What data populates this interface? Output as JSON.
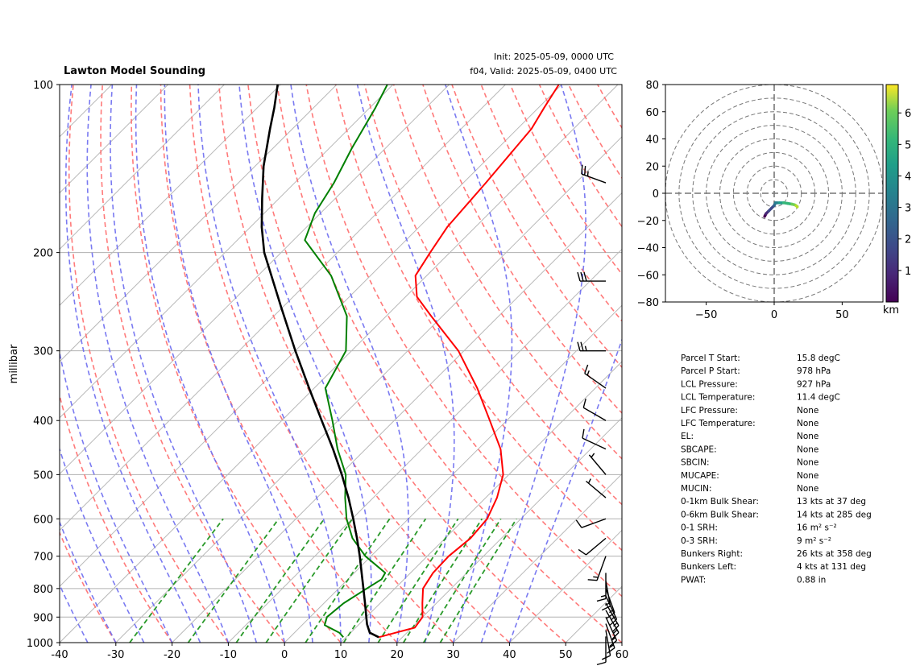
{
  "chart_data": [
    {
      "type": "line",
      "title": "Lawton Model Sounding",
      "init_label": "Init: 2025-05-09, 0000 UTC",
      "valid_label": "f04, Valid: 2025-05-09, 0400 UTC",
      "ylabel": "millibar",
      "xlabel": "",
      "xlim": [
        -40,
        60
      ],
      "ylim": [
        1000,
        100
      ],
      "y_scale": "log",
      "x_ticks": [
        "-40",
        "-30",
        "-20",
        "-10",
        "0",
        "10",
        "20",
        "30",
        "40",
        "50",
        "60"
      ],
      "y_ticks": [
        "1000",
        "900",
        "800",
        "700",
        "600",
        "500",
        "400",
        "300",
        "200",
        "100"
      ],
      "series": [
        {
          "color": "#ff0000",
          "pressure": [
            978,
            960,
            940,
            900,
            850,
            800,
            750,
            700,
            650,
            600,
            550,
            500,
            450,
            400,
            350,
            300,
            260,
            240,
            220,
            200,
            180,
            150,
            120,
            110,
            100
          ],
          "temperature": [
            15.8,
            18.0,
            20.5,
            20.0,
            17.5,
            15.0,
            14.0,
            13.8,
            14.5,
            14.0,
            12.0,
            9.0,
            4.0,
            -3.0,
            -11.0,
            -21.0,
            -32.0,
            -38.0,
            -42.0,
            -43.5,
            -45.0,
            -46.0,
            -47.5,
            -49.0,
            -50.5
          ]
        },
        {
          "color": "#008000",
          "pressure": [
            978,
            960,
            930,
            900,
            850,
            800,
            770,
            750,
            700,
            650,
            600,
            550,
            500,
            450,
            400,
            350,
            300,
            260,
            220,
            190,
            170,
            150,
            130,
            110,
            100
          ],
          "dewpoint": [
            9.5,
            8.0,
            4.0,
            3.0,
            3.5,
            5.0,
            6.0,
            5.5,
            -1.0,
            -6.5,
            -11.0,
            -15.0,
            -19.0,
            -25.0,
            -31.0,
            -38.0,
            -41.0,
            -47.0,
            -57.0,
            -68.0,
            -71.0,
            -73.0,
            -76.0,
            -79.0,
            -81.0
          ]
        },
        {
          "color": "#000000",
          "pressure": [
            978,
            960,
            927,
            900,
            850,
            800,
            750,
            700,
            650,
            600,
            550,
            500,
            450,
            400,
            350,
            300,
            250,
            200,
            180,
            160,
            140,
            120,
            110,
            100
          ],
          "parcel_temperature": [
            15.8,
            13.4,
            11.4,
            10.0,
            7.3,
            4.4,
            1.3,
            -2.0,
            -5.7,
            -9.8,
            -14.4,
            -19.7,
            -25.8,
            -32.9,
            -40.9,
            -50.0,
            -60.4,
            -73.0,
            -78.0,
            -83.0,
            -88.5,
            -94.0,
            -97.0,
            -100.5
          ]
        }
      ],
      "wind_barbs": [
        {
          "pressure": 975,
          "speed_kts": 10,
          "direction_deg": 180
        },
        {
          "pressure": 950,
          "speed_kts": 10,
          "direction_deg": 170
        },
        {
          "pressure": 925,
          "speed_kts": 15,
          "direction_deg": 160
        },
        {
          "pressure": 900,
          "speed_kts": 15,
          "direction_deg": 155
        },
        {
          "pressure": 875,
          "speed_kts": 15,
          "direction_deg": 150
        },
        {
          "pressure": 850,
          "speed_kts": 15,
          "direction_deg": 150
        },
        {
          "pressure": 825,
          "speed_kts": 15,
          "direction_deg": 155
        },
        {
          "pressure": 800,
          "speed_kts": 15,
          "direction_deg": 160
        },
        {
          "pressure": 775,
          "speed_kts": 15,
          "direction_deg": 170
        },
        {
          "pressure": 750,
          "speed_kts": 15,
          "direction_deg": 180
        },
        {
          "pressure": 700,
          "speed_kts": 15,
          "direction_deg": 200
        },
        {
          "pressure": 650,
          "speed_kts": 10,
          "direction_deg": 230
        },
        {
          "pressure": 600,
          "speed_kts": 10,
          "direction_deg": 250
        },
        {
          "pressure": 550,
          "speed_kts": 5,
          "direction_deg": 310
        },
        {
          "pressure": 500,
          "speed_kts": 5,
          "direction_deg": 320
        },
        {
          "pressure": 450,
          "speed_kts": 10,
          "direction_deg": 295
        },
        {
          "pressure": 400,
          "speed_kts": 10,
          "direction_deg": 300
        },
        {
          "pressure": 350,
          "speed_kts": 15,
          "direction_deg": 305
        },
        {
          "pressure": 300,
          "speed_kts": 25,
          "direction_deg": 270
        },
        {
          "pressure": 225,
          "speed_kts": 30,
          "direction_deg": 270
        },
        {
          "pressure": 150,
          "speed_kts": 25,
          "direction_deg": 290
        }
      ]
    },
    {
      "type": "scatter",
      "title": "",
      "xlim": [
        -80,
        80
      ],
      "ylim": [
        -80,
        80
      ],
      "x_ticks": [
        "−50",
        "0",
        "50"
      ],
      "y_ticks": [
        "80",
        "60",
        "40",
        "20",
        "0",
        "−20",
        "−40",
        "−60",
        "−80"
      ],
      "rings": [
        10,
        20,
        30,
        40,
        50,
        60,
        70,
        80
      ],
      "colorbar_label": "km",
      "colorbar_range": [
        0,
        6.9
      ],
      "colorbar_ticks": [
        "1",
        "2",
        "3",
        "4",
        "5",
        "6"
      ],
      "hodograph": {
        "u": [
          -7,
          -6,
          -4,
          -2,
          0,
          1,
          2,
          4,
          7,
          10,
          13,
          15,
          16,
          17
        ],
        "v": [
          -17,
          -15,
          -13,
          -11,
          -9,
          -7,
          -7,
          -7,
          -7,
          -7.5,
          -8,
          -8.5,
          -9,
          -10
        ],
        "height_km": [
          0.1,
          0.5,
          1.0,
          1.5,
          2.0,
          2.5,
          3.0,
          3.5,
          4.0,
          4.5,
          5.0,
          5.5,
          6.0,
          6.5
        ]
      }
    }
  ],
  "stats": [
    {
      "label": "Parcel T Start:",
      "value": "15.8 degC"
    },
    {
      "label": "Parcel P Start:",
      "value": "978 hPa"
    },
    {
      "label": "LCL Pressure:",
      "value": "927 hPa"
    },
    {
      "label": "LCL Temperature:",
      "value": "11.4 degC"
    },
    {
      "label": "LFC Pressure:",
      "value": "None"
    },
    {
      "label": "LFC Temperature:",
      "value": "None"
    },
    {
      "label": "EL:",
      "value": "None"
    },
    {
      "label": "SBCAPE:",
      "value": "None"
    },
    {
      "label": "SBCIN:",
      "value": "None"
    },
    {
      "label": "MUCAPE:",
      "value": "None"
    },
    {
      "label": "MUCIN:",
      "value": "None"
    },
    {
      "label": "0-1km Bulk Shear:",
      "value": "13 kts at 37 deg"
    },
    {
      "label": "0-6km Bulk Shear:",
      "value": "14 kts at 285 deg"
    },
    {
      "label": "0-1 SRH:",
      "value": "16 m² s⁻²"
    },
    {
      "label": "0-3 SRH:",
      "value": "9 m² s⁻²"
    },
    {
      "label": "Bunkers Right:",
      "value": "26 kts at 358 deg"
    },
    {
      "label": "Bunkers Left:",
      "value": "4 kts at 131 deg"
    },
    {
      "label": "PWAT:",
      "value": "0.88 in"
    }
  ],
  "colors": {
    "temperature": "#ff0000",
    "dewpoint": "#008000",
    "parcel": "#000000",
    "dry_adiabat": "#ff6b6b",
    "moist_adiabat": "#6b6bf0",
    "mixing_ratio": "#2a9a2a",
    "isotherm": "#b8b8b8"
  }
}
